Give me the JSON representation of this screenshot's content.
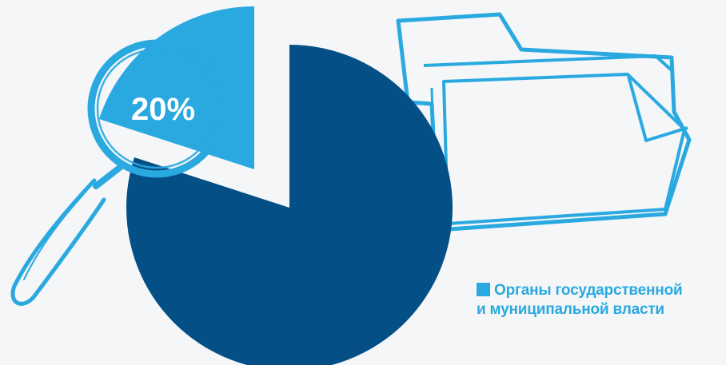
{
  "chart_data": {
    "type": "pie",
    "title": "",
    "slices": [
      {
        "label": "Органы государственной и муниципальной власти",
        "value": 20,
        "color": "#2aa9e0",
        "exploded": true
      },
      {
        "label": "",
        "value": 80,
        "color": "#034f86"
      }
    ],
    "data_labels": [
      {
        "slice": 0,
        "text": "20%"
      }
    ],
    "legend": {
      "placement": "bottom-right",
      "entries": [
        {
          "lines": [
            "Органы государственной",
            "и муниципальной власти"
          ],
          "color": "#2aa9e0"
        }
      ]
    }
  },
  "decorations": {
    "magnifier_icon": "magnifying-glass-icon",
    "folder_icon": "folder-icon",
    "accent_color": "#2aa9e0",
    "background_color": "#f4f6f8"
  }
}
